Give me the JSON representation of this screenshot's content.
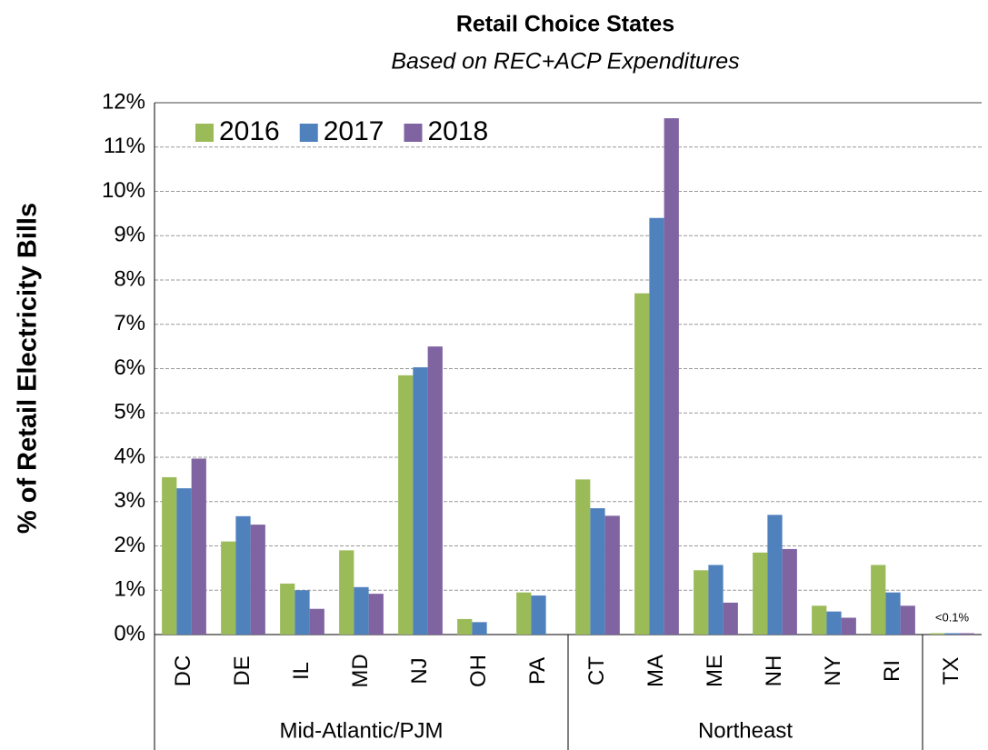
{
  "chart_data": {
    "type": "bar",
    "title": "Retail Choice States",
    "subtitle": "Based on REC+ACP Expenditures",
    "y_label": "% of Retail Electricity Bills",
    "categories": [
      "DC",
      "DE",
      "IL",
      "MD",
      "NJ",
      "OH",
      "PA",
      "CT",
      "MA",
      "ME",
      "NH",
      "NY",
      "RI",
      "TX"
    ],
    "groups": [
      {
        "name": "Mid-Atlantic/PJM",
        "members": [
          "DC",
          "DE",
          "IL",
          "MD",
          "NJ",
          "OH",
          "PA"
        ]
      },
      {
        "name": "Northeast",
        "members": [
          "CT",
          "MA",
          "ME",
          "NH",
          "NY",
          "RI"
        ]
      },
      {
        "name": null,
        "members": [
          "TX"
        ]
      }
    ],
    "series": [
      {
        "name": "2016",
        "color": "#9bbb59",
        "values": [
          3.55,
          2.1,
          1.15,
          1.9,
          5.85,
          0.35,
          0.95,
          3.5,
          7.7,
          1.45,
          1.85,
          0.65,
          1.57,
          0.03
        ]
      },
      {
        "name": "2017",
        "color": "#4f81bd",
        "values": [
          3.3,
          2.67,
          1.0,
          1.07,
          6.03,
          0.28,
          0.88,
          2.85,
          9.4,
          1.57,
          2.7,
          0.52,
          0.95,
          0.03
        ]
      },
      {
        "name": "2018",
        "color": "#8064a2",
        "values": [
          3.97,
          2.48,
          0.58,
          0.92,
          6.5,
          null,
          null,
          2.68,
          11.65,
          0.72,
          1.93,
          0.38,
          0.65,
          0.03
        ]
      }
    ],
    "annotations": [
      {
        "text": "<0.1%",
        "category": "TX"
      }
    ],
    "ylim": [
      0,
      12
    ],
    "yticks": [
      {
        "value": 0,
        "label": "0%"
      },
      {
        "value": 1,
        "label": "1%"
      },
      {
        "value": 2,
        "label": "2%"
      },
      {
        "value": 3,
        "label": "3%"
      },
      {
        "value": 4,
        "label": "4%"
      },
      {
        "value": 5,
        "label": "5%"
      },
      {
        "value": 6,
        "label": "6%"
      },
      {
        "value": 7,
        "label": "7%"
      },
      {
        "value": 8,
        "label": "8%"
      },
      {
        "value": 9,
        "label": "9%"
      },
      {
        "value": 10,
        "label": "10%"
      },
      {
        "value": 11,
        "label": "11%"
      },
      {
        "value": 12,
        "label": "12%"
      }
    ],
    "grid": true,
    "legend": "top-left"
  }
}
